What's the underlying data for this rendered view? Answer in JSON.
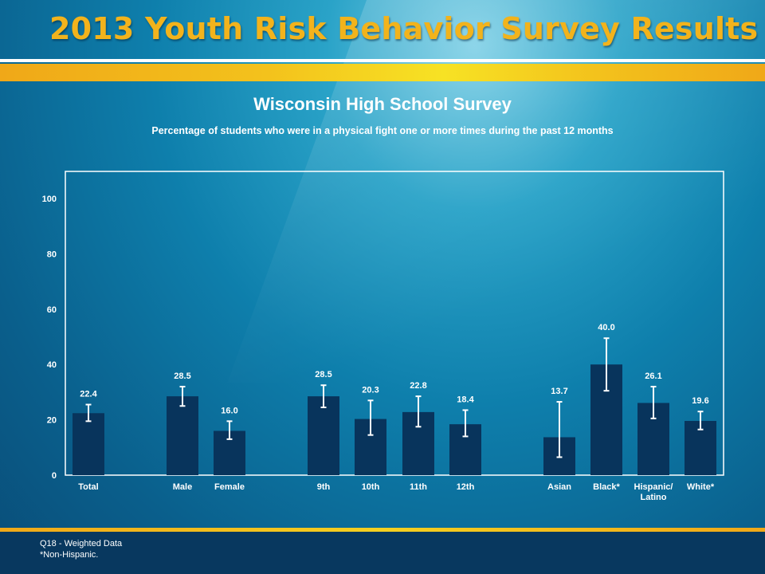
{
  "header": {
    "title": "2013 Youth Risk Behavior Survey Results"
  },
  "chart_data": {
    "type": "bar",
    "title": "Wisconsin High School Survey",
    "subtitle": "Percentage of students who were in a physical fight one or more times during the past 12 months",
    "xlabel": "",
    "ylabel": "",
    "ylim": [
      0,
      100
    ],
    "yticks": [
      0,
      20,
      40,
      60,
      80,
      100
    ],
    "grid": false,
    "legend": "none",
    "categories": [
      "Total",
      "Male",
      "Female",
      "9th",
      "10th",
      "11th",
      "12th",
      "Asian",
      "Black*",
      "Hispanic/\nLatino",
      "White*"
    ],
    "values": [
      22.4,
      28.5,
      16.0,
      28.5,
      20.3,
      22.8,
      18.4,
      13.7,
      40.0,
      26.1,
      19.6
    ],
    "value_labels": [
      "22.4",
      "28.5",
      "16.0",
      "28.5",
      "20.3",
      "22.8",
      "18.4",
      "13.7",
      "40.0",
      "26.1",
      "19.6"
    ],
    "error_low": [
      19.5,
      25.0,
      13.0,
      24.5,
      14.5,
      17.5,
      14.0,
      6.5,
      30.5,
      20.5,
      16.5
    ],
    "error_high": [
      25.5,
      32.0,
      19.5,
      32.5,
      27.0,
      28.5,
      23.5,
      26.5,
      49.5,
      32.0,
      23.0
    ],
    "groups": [
      [
        0
      ],
      [
        1,
        2
      ],
      [
        3,
        4,
        5,
        6
      ],
      [
        7,
        8,
        9,
        10
      ]
    ],
    "colors": {
      "bar": "#08345c",
      "error_bar": "#ffffff",
      "text": "#ffffff"
    }
  },
  "footer": {
    "note1": "Q18 - Weighted Data",
    "note2": "*Non-Hispanic."
  }
}
